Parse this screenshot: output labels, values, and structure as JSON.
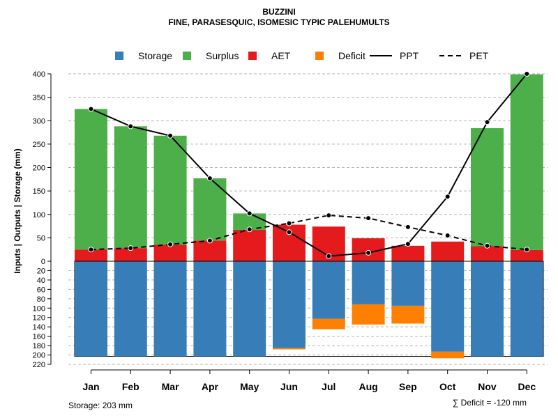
{
  "chart_data": {
    "type": "bar",
    "title": "BUZZINI",
    "subtitle": "FINE, PARASESQUIC, ISOMESIC TYPIC PALEHUMULTS",
    "ylabel": "Inputs | Outputs | Storage    (mm)",
    "categories": [
      "Jan",
      "Feb",
      "Mar",
      "Apr",
      "May",
      "Jun",
      "Jul",
      "Aug",
      "Sep",
      "Oct",
      "Nov",
      "Dec"
    ],
    "ylim_upper": [
      0,
      400
    ],
    "ylim_lower": [
      0,
      220
    ],
    "yticks_upper": [
      "0",
      "50",
      "100",
      "150",
      "200",
      "250",
      "300",
      "350",
      "400"
    ],
    "yticks_lower": [
      "20",
      "40",
      "60",
      "80",
      "100",
      "120",
      "140",
      "160",
      "180",
      "200",
      "220"
    ],
    "legend": {
      "placement": "top",
      "items": [
        {
          "label": "Storage",
          "kind": "box",
          "color": "#377EB8"
        },
        {
          "label": "Surplus",
          "kind": "box",
          "color": "#4DAF4A"
        },
        {
          "label": "AET",
          "kind": "box",
          "color": "#E41A1C"
        },
        {
          "label": "Deficit",
          "kind": "box",
          "color": "#FF7F00"
        },
        {
          "label": "PPT",
          "kind": "solid-line",
          "color": "#000000"
        },
        {
          "label": "PET",
          "kind": "dashed-line",
          "color": "#000000"
        }
      ]
    },
    "series": [
      {
        "name": "AET",
        "values": [
          25,
          28,
          35,
          44,
          67,
          78,
          74,
          49,
          33,
          42,
          32,
          24
        ]
      },
      {
        "name": "Surplus",
        "values": [
          300,
          260,
          233,
          133,
          35,
          0,
          0,
          0,
          0,
          0,
          252,
          375
        ]
      },
      {
        "name": "Storage",
        "values": [
          203,
          203,
          203,
          203,
          203,
          185,
          123,
          92,
          95,
          193,
          203,
          203
        ]
      },
      {
        "name": "Deficit",
        "values": [
          0,
          0,
          0,
          0,
          0,
          3,
          22,
          43,
          38,
          14,
          0,
          0
        ]
      },
      {
        "name": "PPT",
        "values": [
          325,
          288,
          268,
          177,
          102,
          62,
          11,
          18,
          37,
          138,
          297,
          400
        ]
      },
      {
        "name": "PET",
        "values": [
          25,
          28,
          36,
          44,
          68,
          81,
          98,
          92,
          73,
          55,
          33,
          25
        ]
      }
    ],
    "storage_capacity": 203,
    "storage_note": "Storage: 203 mm",
    "deficit_note": "∑ Deficit = -120 mm"
  }
}
